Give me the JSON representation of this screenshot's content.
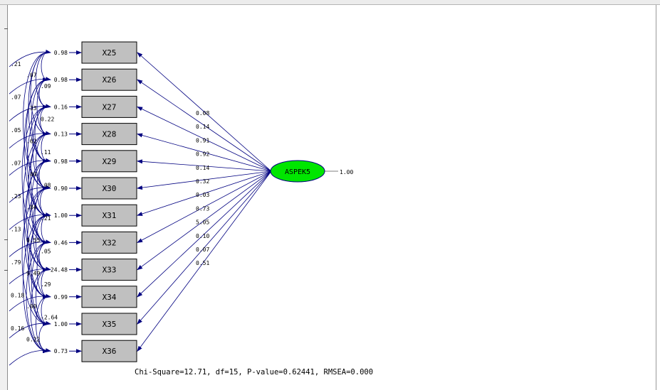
{
  "diagram": {
    "latent": {
      "label": "ASPEK5",
      "variance": "1.00",
      "fill": "#00e600"
    },
    "indicators": [
      {
        "label": "X25",
        "error": "0.98",
        "loading": "0.08"
      },
      {
        "label": "X26",
        "error": "0.98",
        "loading": "0.14"
      },
      {
        "label": "X27",
        "error": "0.16",
        "loading": "0.91"
      },
      {
        "label": "X28",
        "error": "0.13",
        "loading": "0.92"
      },
      {
        "label": "X29",
        "error": "0.98",
        "loading": "0.14"
      },
      {
        "label": "X30",
        "error": "0.90",
        "loading": "0.32"
      },
      {
        "label": "X31",
        "error": "1.00",
        "loading": "0.03"
      },
      {
        "label": "X32",
        "error": "0.46",
        "loading": "0.73"
      },
      {
        "label": "X33",
        "error": "24.48",
        "loading": "5.05"
      },
      {
        "label": "X34",
        "error": "0.99",
        "loading": "0.10"
      },
      {
        "label": "X35",
        "error": "1.00",
        "loading": "0.07"
      },
      {
        "label": "X36",
        "error": "0.73",
        "loading": "0.51"
      }
    ],
    "covariance_labels": [
      ".21",
      ".07",
      ".09",
      ".07",
      ".33",
      "0.22",
      ".05",
      ".62",
      ".11",
      ".07",
      ".40",
      ".08",
      ".23",
      ".84",
      ".21",
      ".13",
      "0.55",
      ".05",
      ".79",
      "9.49",
      ".29",
      "0.18",
      ".00",
      "-2.64",
      "0.16",
      "0.22"
    ],
    "box_fill": "#c0c0c0",
    "arrow_color": "#000080"
  },
  "fit_stats": "Chi-Square=12.71, df=15, P-value=0.62441, RMSEA=0.000"
}
